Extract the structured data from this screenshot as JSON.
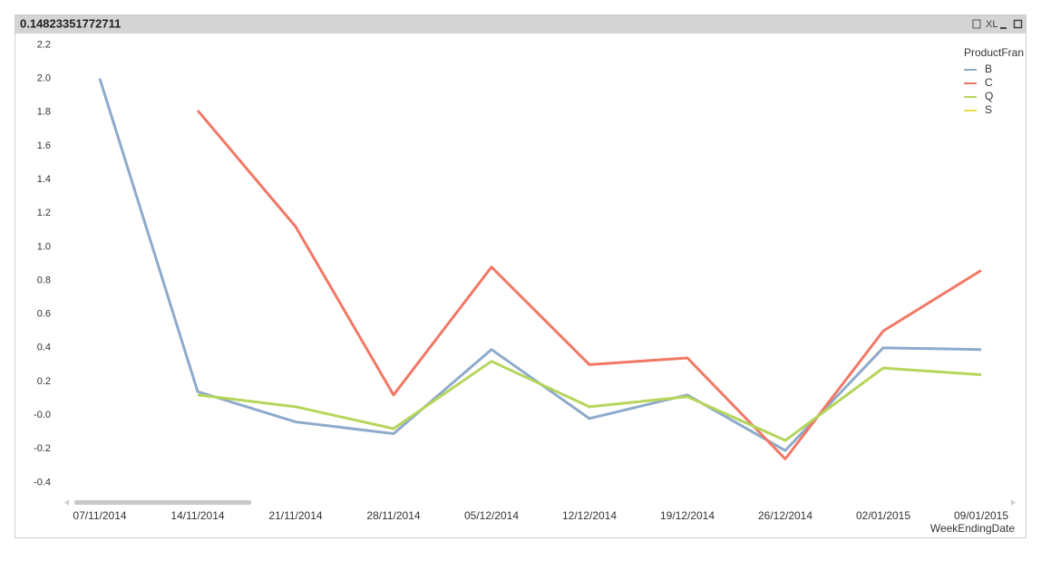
{
  "chart_data": {
    "type": "line",
    "title": "0.14823351772711",
    "toolbar_label": "XL",
    "x_label": "WeekEndingDate",
    "legend_title": "ProductFran",
    "legend_position": "top-right",
    "categories": [
      "07/11/2014",
      "14/11/2014",
      "21/11/2014",
      "28/11/2014",
      "05/12/2014",
      "12/12/2014",
      "19/12/2014",
      "26/12/2014",
      "02/01/2015",
      "09/01/2015"
    ],
    "series": [
      {
        "name": "B",
        "color": "#8eaacb",
        "values": [
          2.0,
          0.14,
          -0.04,
          -0.11,
          0.39,
          -0.02,
          0.12,
          -0.21,
          0.4,
          0.39
        ]
      },
      {
        "name": "C",
        "color": "#f27866",
        "values": [
          null,
          1.81,
          1.12,
          0.12,
          0.88,
          0.3,
          0.34,
          -0.26,
          0.5,
          0.86
        ]
      },
      {
        "name": "Q",
        "color": "#b5d55b",
        "values": [
          null,
          0.12,
          0.05,
          -0.08,
          0.32,
          0.05,
          0.11,
          -0.15,
          0.28,
          0.24
        ]
      },
      {
        "name": "S",
        "color": "#e3e04c",
        "values": [
          null,
          null,
          null,
          null,
          null,
          null,
          null,
          null,
          null,
          null
        ]
      }
    ],
    "ylim": [
      -0.5,
      2.2
    ],
    "yticks": [
      2.2,
      {
        "value": 2.0,
        "label": "2.0"
      },
      1.8,
      1.6,
      1.4,
      1.2,
      {
        "value": 1.0,
        "label": "1.0"
      },
      0.8,
      0.6,
      0.4,
      0.2,
      {
        "value": 0,
        "label": "-0.0"
      },
      -0.2,
      -0.4
    ],
    "grid": false
  }
}
